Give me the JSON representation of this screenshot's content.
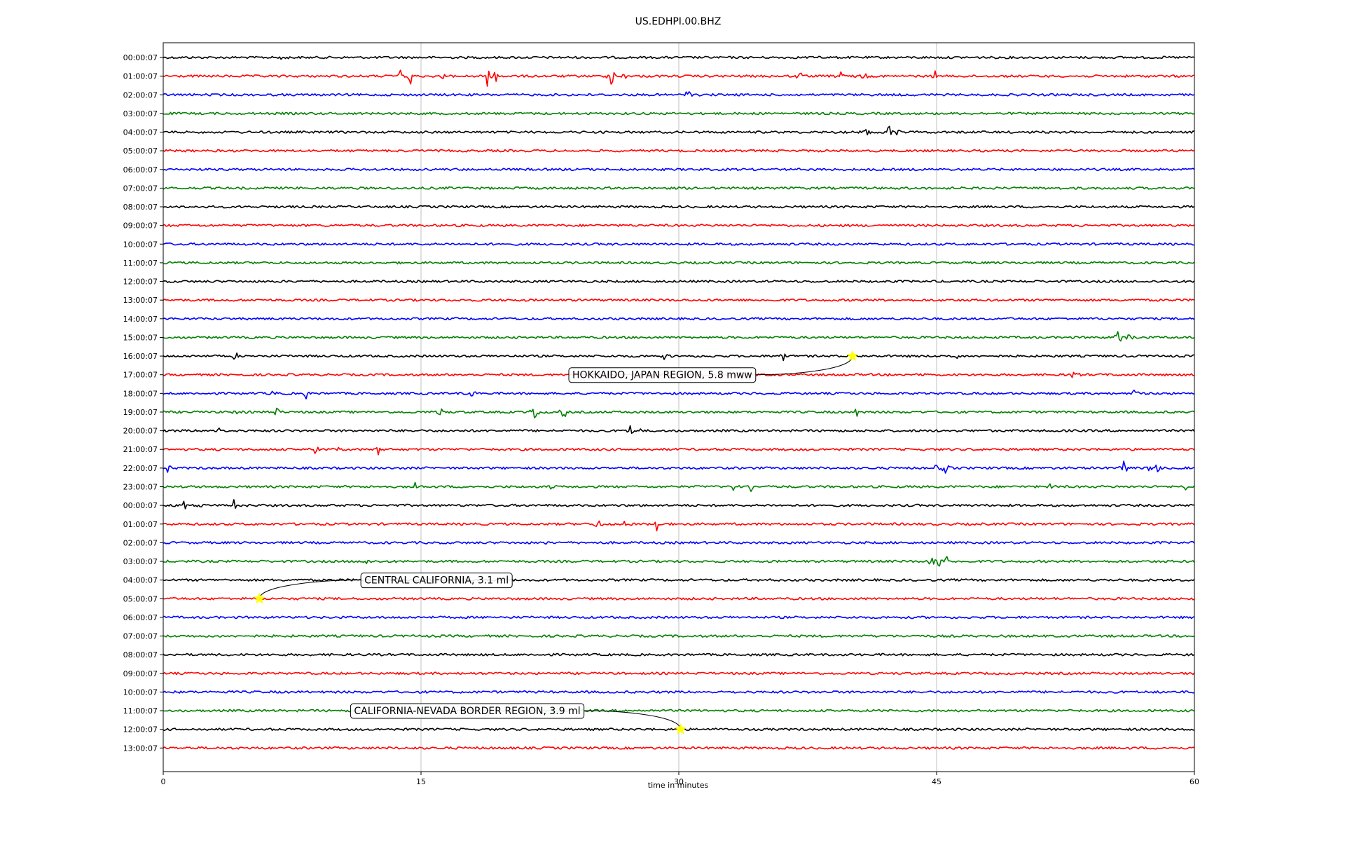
{
  "chart_data": {
    "type": "line",
    "title": "US.EDHPI.00.BHZ",
    "xlabel": "time in minutes",
    "xlim": [
      0,
      60
    ],
    "xticks": [
      0,
      15,
      30,
      45,
      60
    ],
    "grid": "vertical",
    "row_colors": [
      "#000000",
      "#ff0000",
      "#0000ff",
      "#008000"
    ],
    "rows": [
      {
        "label": "00:00:07",
        "events": [
          {
            "t": 6.9,
            "amp": 9
          },
          {
            "t": 38.1,
            "amp": 7
          }
        ]
      },
      {
        "label": "01:00:07",
        "events": [
          {
            "t": 13.8,
            "amp": 10
          },
          {
            "t": 14.4,
            "amp": 18
          },
          {
            "t": 16.3,
            "amp": 9
          },
          {
            "t": 18.9,
            "amp": 28
          },
          {
            "t": 19.3,
            "amp": 18
          },
          {
            "t": 26.1,
            "amp": 22
          },
          {
            "t": 26.8,
            "amp": 8
          },
          {
            "t": 37.0,
            "amp": 9
          },
          {
            "t": 39.4,
            "amp": 9
          },
          {
            "t": 40.8,
            "amp": 7
          },
          {
            "t": 44.9,
            "amp": 9
          }
        ]
      },
      {
        "label": "02:00:07",
        "events": [
          {
            "t": 30.5,
            "amp": 11
          }
        ]
      },
      {
        "label": "03:00:07",
        "events": []
      },
      {
        "label": "04:00:07",
        "events": [
          {
            "t": 40.5,
            "amp": 6
          },
          {
            "t": 41.0,
            "amp": 8
          },
          {
            "t": 42.3,
            "amp": 18
          },
          {
            "t": 42.8,
            "amp": 6
          }
        ]
      },
      {
        "label": "05:00:07",
        "events": []
      },
      {
        "label": "06:00:07",
        "events": []
      },
      {
        "label": "07:00:07",
        "events": []
      },
      {
        "label": "08:00:07",
        "events": []
      },
      {
        "label": "09:00:07",
        "events": []
      },
      {
        "label": "10:00:07",
        "events": []
      },
      {
        "label": "11:00:07",
        "events": []
      },
      {
        "label": "12:00:07",
        "events": []
      },
      {
        "label": "13:00:07",
        "events": []
      },
      {
        "label": "14:00:07",
        "events": []
      },
      {
        "label": "15:00:07",
        "events": [
          {
            "t": 55.6,
            "amp": 22
          },
          {
            "t": 56.2,
            "amp": 8
          }
        ]
      },
      {
        "label": "16:00:07",
        "events": [
          {
            "t": 4.2,
            "amp": 7
          },
          {
            "t": 29.2,
            "amp": 6
          },
          {
            "t": 36.1,
            "amp": 9
          },
          {
            "t": 46.1,
            "amp": 5
          }
        ]
      },
      {
        "label": "17:00:07",
        "events": [
          {
            "t": 42.3,
            "amp": 6
          },
          {
            "t": 44.5,
            "amp": 7
          },
          {
            "t": 53.0,
            "amp": 10
          }
        ]
      },
      {
        "label": "18:00:07",
        "events": [
          {
            "t": 6.4,
            "amp": 7
          },
          {
            "t": 8.3,
            "amp": 9
          },
          {
            "t": 18.0,
            "amp": 6
          },
          {
            "t": 56.5,
            "amp": 9
          }
        ]
      },
      {
        "label": "19:00:07",
        "events": [
          {
            "t": 4.1,
            "amp": 9
          },
          {
            "t": 6.6,
            "amp": 8
          },
          {
            "t": 16.2,
            "amp": 10
          },
          {
            "t": 21.6,
            "amp": 14
          },
          {
            "t": 23.3,
            "amp": 16
          },
          {
            "t": 40.4,
            "amp": 9
          }
        ]
      },
      {
        "label": "20:00:07",
        "events": [
          {
            "t": 3.2,
            "amp": 6
          },
          {
            "t": 27.2,
            "amp": 12
          },
          {
            "t": 27.7,
            "amp": 6
          }
        ]
      },
      {
        "label": "21:00:07",
        "events": [
          {
            "t": 8.9,
            "amp": 10
          },
          {
            "t": 10.2,
            "amp": 6
          },
          {
            "t": 12.5,
            "amp": 8
          }
        ]
      },
      {
        "label": "22:00:07",
        "events": [
          {
            "t": 0.3,
            "amp": 8
          },
          {
            "t": 45.0,
            "amp": 9
          },
          {
            "t": 45.5,
            "amp": 12
          },
          {
            "t": 55.9,
            "amp": 14
          },
          {
            "t": 57.3,
            "amp": 12
          },
          {
            "t": 57.8,
            "amp": 10
          }
        ]
      },
      {
        "label": "23:00:07",
        "events": [
          {
            "t": 14.7,
            "amp": 8
          },
          {
            "t": 22.5,
            "amp": 6
          },
          {
            "t": 33.2,
            "amp": 10
          },
          {
            "t": 34.2,
            "amp": 8
          },
          {
            "t": 51.6,
            "amp": 7
          },
          {
            "t": 59.5,
            "amp": 6
          }
        ]
      },
      {
        "label": "00:00:07",
        "events": [
          {
            "t": 1.2,
            "amp": 9
          },
          {
            "t": 2.3,
            "amp": 7
          },
          {
            "t": 4.1,
            "amp": 10
          },
          {
            "t": 4.6,
            "amp": 7
          }
        ]
      },
      {
        "label": "01:00:07",
        "events": [
          {
            "t": 25.3,
            "amp": 18
          },
          {
            "t": 26.9,
            "amp": 8
          },
          {
            "t": 28.8,
            "amp": 22
          }
        ]
      },
      {
        "label": "02:00:07",
        "events": [
          {
            "t": 22.4,
            "amp": 5
          }
        ]
      },
      {
        "label": "03:00:07",
        "events": [
          {
            "t": 11.8,
            "amp": 7
          },
          {
            "t": 44.7,
            "amp": 12
          },
          {
            "t": 45.1,
            "amp": 22
          },
          {
            "t": 45.6,
            "amp": 9
          }
        ]
      },
      {
        "label": "04:00:07",
        "events": []
      },
      {
        "label": "05:00:07",
        "events": []
      },
      {
        "label": "06:00:07",
        "events": []
      },
      {
        "label": "07:00:07",
        "events": []
      },
      {
        "label": "08:00:07",
        "events": []
      },
      {
        "label": "09:00:07",
        "events": []
      },
      {
        "label": "10:00:07",
        "events": []
      },
      {
        "label": "11:00:07",
        "events": []
      },
      {
        "label": "12:00:07",
        "events": []
      },
      {
        "label": "13:00:07",
        "events": []
      }
    ],
    "annotations": [
      {
        "text": "HOKKAIDO, JAPAN REGION, 5.8 mww",
        "row": 16,
        "t": 40.1,
        "label_row": 17,
        "label_t": 23.6
      },
      {
        "text": "CENTRAL CALIFORNIA, 3.1 ml",
        "row": 29,
        "t": 5.6,
        "label_row": 28,
        "label_t": 11.5
      },
      {
        "text": "CALIFORNIA-NEVADA BORDER REGION, 3.9 ml",
        "row": 36,
        "t": 30.1,
        "label_row": 35,
        "label_t": 10.9
      }
    ],
    "marker_color": "#ffff00"
  }
}
